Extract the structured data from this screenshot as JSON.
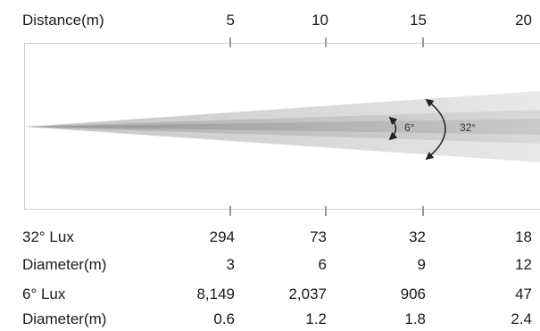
{
  "header": {
    "label": "Distance(m)",
    "distances": [
      "5",
      "10",
      "15",
      "20"
    ]
  },
  "beam": {
    "narrow_angle": "6°",
    "wide_angle": "32°"
  },
  "rows": [
    {
      "label": "32° Lux",
      "values": [
        "294",
        "73",
        "32",
        "18"
      ]
    },
    {
      "label": "Diameter(m)",
      "values": [
        "3",
        "6",
        "9",
        "12"
      ]
    },
    {
      "label": "6° Lux",
      "values": [
        "8,149",
        "2,037",
        "906",
        "47"
      ]
    },
    {
      "label": "Diameter(m)",
      "values": [
        "0.6",
        "1.2",
        "1.8",
        "2.4"
      ]
    }
  ],
  "colors": {
    "text": "#1a1a1a",
    "frame": "#cfcfcf",
    "tick": "#9a9a9a",
    "arrow": "#222222"
  }
}
